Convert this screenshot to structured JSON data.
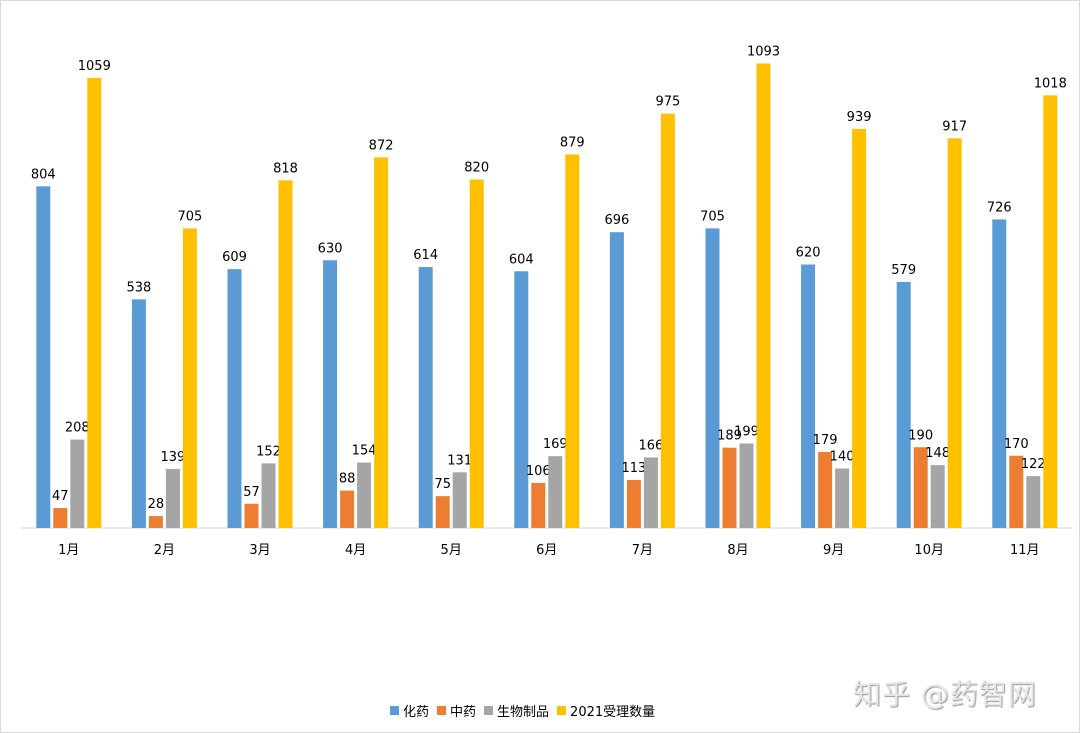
{
  "chart_data": {
    "type": "bar",
    "title": "",
    "xlabel": "",
    "ylabel": "",
    "ylim": [
      0,
      1200
    ],
    "grid": false,
    "legend_position": "bottom",
    "categories": [
      "1月",
      "2月",
      "3月",
      "4月",
      "5月",
      "6月",
      "7月",
      "8月",
      "9月",
      "10月",
      "11月"
    ],
    "series": [
      {
        "name": "化药",
        "color": "#5b9bd5",
        "values": [
          804,
          538,
          609,
          630,
          614,
          604,
          696,
          705,
          620,
          579,
          726
        ]
      },
      {
        "name": "中药",
        "color": "#ed7d31",
        "values": [
          47,
          28,
          57,
          88,
          75,
          106,
          113,
          189,
          179,
          190,
          170
        ]
      },
      {
        "name": "生物制品",
        "color": "#a5a5a5",
        "values": [
          208,
          139,
          152,
          154,
          131,
          169,
          166,
          199,
          140,
          148,
          122
        ]
      },
      {
        "name": "2021受理数量",
        "color": "#ffc000",
        "values": [
          1059,
          705,
          818,
          872,
          820,
          879,
          975,
          1093,
          939,
          917,
          1018
        ]
      }
    ],
    "data_labels": true
  },
  "watermark": "知乎 @药智网"
}
